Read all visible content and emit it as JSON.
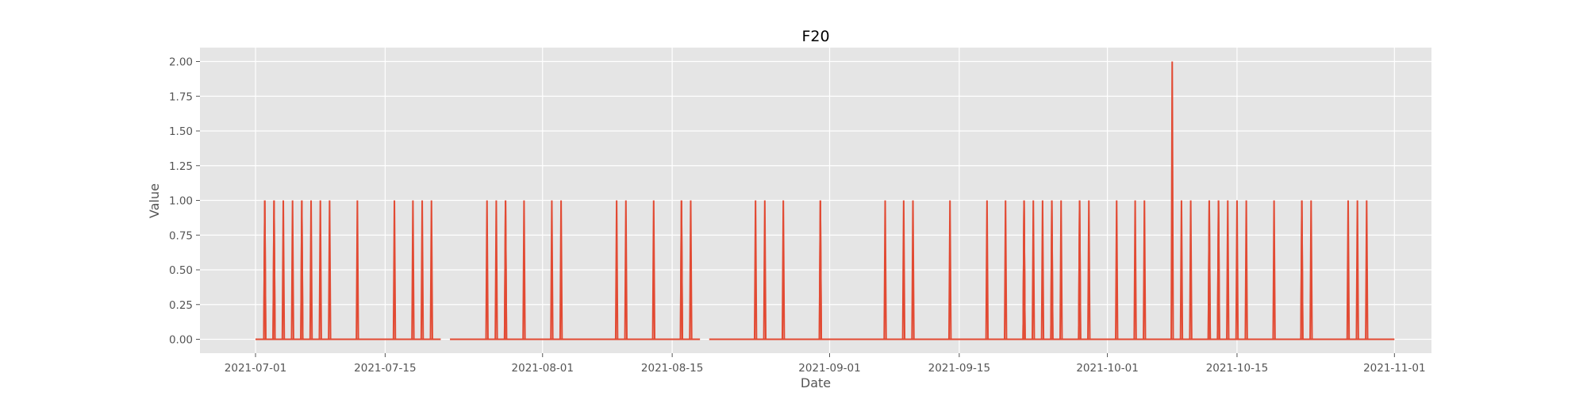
{
  "chart_data": {
    "type": "line",
    "title": "F20",
    "xlabel": "Date",
    "ylabel": "Value",
    "xlim": [
      "2021-06-25",
      "2021-11-05"
    ],
    "ylim": [
      -0.1,
      2.1
    ],
    "x_ticks": [
      "2021-07-01",
      "2021-07-15",
      "2021-08-01",
      "2021-08-15",
      "2021-09-01",
      "2021-09-15",
      "2021-10-01",
      "2021-10-15",
      "2021-11-01"
    ],
    "x_tick_labels": [
      "2021-07-01",
      "2021-07-15",
      "2021-08-01",
      "2021-08-15",
      "2021-09-01",
      "2021-09-15",
      "2021-10-01",
      "2021-10-15",
      "2021-11-01"
    ],
    "y_ticks": [
      0,
      0.25,
      0.5,
      0.75,
      1.0,
      1.25,
      1.5,
      1.75,
      2.0
    ],
    "y_tick_labels": [
      "0.00",
      "0.25",
      "0.50",
      "0.75",
      "1.00",
      "1.25",
      "1.50",
      "1.75",
      "2.00"
    ],
    "grid": true,
    "legend": "none",
    "series": [
      {
        "color": "#e24a33",
        "baseline": 0,
        "segments": [
          [
            "2021-07-01",
            "2021-07-21"
          ],
          [
            "2021-07-22",
            "2021-08-18"
          ],
          [
            "2021-08-19",
            "2021-11-01"
          ]
        ],
        "spikes": [
          {
            "x": "2021-07-02",
            "y": 1
          },
          {
            "x": "2021-07-02",
            "y": 1
          },
          {
            "x": "2021-07-03",
            "y": 1
          },
          {
            "x": "2021-07-03",
            "y": 1
          },
          {
            "x": "2021-07-04",
            "y": 1
          },
          {
            "x": "2021-07-05",
            "y": 1
          },
          {
            "x": "2021-07-06",
            "y": 1
          },
          {
            "x": "2021-07-06",
            "y": 1
          },
          {
            "x": "2021-07-07",
            "y": 1
          },
          {
            "x": "2021-07-08",
            "y": 1
          },
          {
            "x": "2021-07-09",
            "y": 1
          },
          {
            "x": "2021-07-12",
            "y": 1
          },
          {
            "x": "2021-07-16",
            "y": 1
          },
          {
            "x": "2021-07-18",
            "y": 1
          },
          {
            "x": "2021-07-19",
            "y": 1
          },
          {
            "x": "2021-07-20",
            "y": 1
          },
          {
            "x": "2021-07-26",
            "y": 1
          },
          {
            "x": "2021-07-27",
            "y": 1
          },
          {
            "x": "2021-07-28",
            "y": 1
          },
          {
            "x": "2021-07-28",
            "y": 1
          },
          {
            "x": "2021-07-30",
            "y": 1
          },
          {
            "x": "2021-08-02",
            "y": 1
          },
          {
            "x": "2021-08-03",
            "y": 1
          },
          {
            "x": "2021-08-09",
            "y": 1
          },
          {
            "x": "2021-08-10",
            "y": 1
          },
          {
            "x": "2021-08-13",
            "y": 1
          },
          {
            "x": "2021-08-16",
            "y": 1
          },
          {
            "x": "2021-08-16",
            "y": 1
          },
          {
            "x": "2021-08-17",
            "y": 1
          },
          {
            "x": "2021-08-24",
            "y": 1
          },
          {
            "x": "2021-08-25",
            "y": 1
          },
          {
            "x": "2021-08-27",
            "y": 1
          },
          {
            "x": "2021-08-31",
            "y": 1
          },
          {
            "x": "2021-08-31",
            "y": 1
          },
          {
            "x": "2021-09-07",
            "y": 1
          },
          {
            "x": "2021-09-09",
            "y": 1
          },
          {
            "x": "2021-09-10",
            "y": 1
          },
          {
            "x": "2021-09-14",
            "y": 1
          },
          {
            "x": "2021-09-18",
            "y": 1
          },
          {
            "x": "2021-09-20",
            "y": 1
          },
          {
            "x": "2021-09-22",
            "y": 1
          },
          {
            "x": "2021-09-22",
            "y": 1
          },
          {
            "x": "2021-09-22",
            "y": 1
          },
          {
            "x": "2021-09-23",
            "y": 1
          },
          {
            "x": "2021-09-24",
            "y": 1
          },
          {
            "x": "2021-09-25",
            "y": 1
          },
          {
            "x": "2021-09-25",
            "y": 1
          },
          {
            "x": "2021-09-26",
            "y": 1
          },
          {
            "x": "2021-09-28",
            "y": 1
          },
          {
            "x": "2021-09-28",
            "y": 1
          },
          {
            "x": "2021-09-29",
            "y": 1
          },
          {
            "x": "2021-10-02",
            "y": 1
          },
          {
            "x": "2021-10-04",
            "y": 1
          },
          {
            "x": "2021-10-05",
            "y": 1
          },
          {
            "x": "2021-10-08",
            "y": 2
          },
          {
            "x": "2021-10-09",
            "y": 1
          },
          {
            "x": "2021-10-10",
            "y": 1
          },
          {
            "x": "2021-10-12",
            "y": 1
          },
          {
            "x": "2021-10-12",
            "y": 1
          },
          {
            "x": "2021-10-13",
            "y": 1
          },
          {
            "x": "2021-10-13",
            "y": 1
          },
          {
            "x": "2021-10-14",
            "y": 1
          },
          {
            "x": "2021-10-15",
            "y": 1
          },
          {
            "x": "2021-10-16",
            "y": 1
          },
          {
            "x": "2021-10-19",
            "y": 1
          },
          {
            "x": "2021-10-22",
            "y": 1
          },
          {
            "x": "2021-10-22",
            "y": 1
          },
          {
            "x": "2021-10-23",
            "y": 1
          },
          {
            "x": "2021-10-27",
            "y": 1
          },
          {
            "x": "2021-10-28",
            "y": 1
          },
          {
            "x": "2021-10-29",
            "y": 1
          }
        ]
      }
    ]
  }
}
